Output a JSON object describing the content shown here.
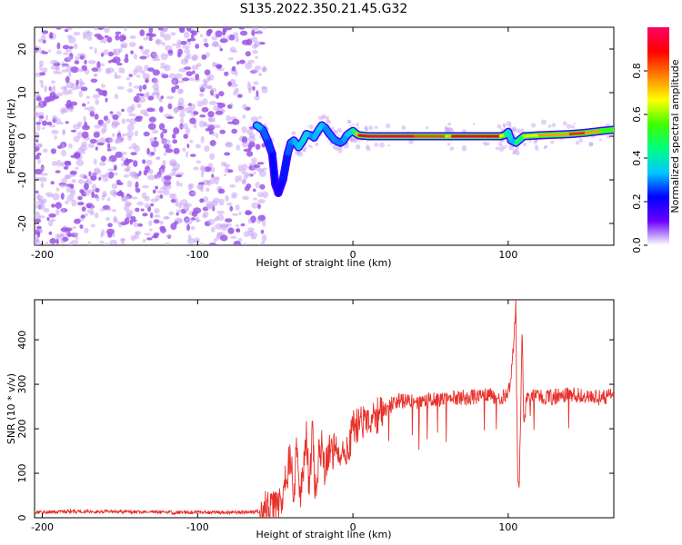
{
  "title": "S135.2022.350.21.45.G32",
  "colors": {
    "snr_line": "#e8302a",
    "background": "#ffffff",
    "noise_dots": "#9b55e6",
    "noise_dots_light": "#c9a4f4",
    "colorbar_stops": [
      "#ffffff",
      "#6a00ff",
      "#0000ff",
      "#00c8ff",
      "#00ff80",
      "#40ff00",
      "#ffff00",
      "#ff8000",
      "#ff0000",
      "#ff0066"
    ]
  },
  "chart_data": [
    {
      "type": "heatmap",
      "title": "S135.2022.350.21.45.G32",
      "xlabel": "Height of straight line (km)",
      "ylabel": "Frequency (Hz)",
      "xlim": [
        -205,
        168
      ],
      "ylim": [
        -25,
        25
      ],
      "xticks": [
        -200,
        -100,
        0,
        100
      ],
      "yticks": [
        -20,
        -10,
        0,
        10,
        20
      ],
      "colorbar": {
        "label": "Normalized spectral amplitude",
        "range": [
          0.0,
          1.0
        ],
        "ticks": [
          "0.0",
          "0.2",
          "0.4",
          "0.6",
          "0.8"
        ]
      },
      "noise_region": {
        "x_from": -205,
        "x_to": -60,
        "freq_from": -25,
        "freq_to": 25,
        "amplitude": 0.15
      },
      "ridge": {
        "x": [
          -62,
          -58,
          -55,
          -52,
          -50,
          -48,
          -45,
          -42,
          -40,
          -38,
          -35,
          -32,
          -30,
          -27,
          -25,
          -22,
          -20,
          -18,
          -15,
          -12,
          -10,
          -8,
          -6,
          -4,
          -2,
          0,
          2,
          4,
          10,
          20,
          40,
          60,
          62,
          64,
          80,
          95,
          98,
          100,
          102,
          105,
          110,
          120,
          140,
          150,
          160,
          168
        ],
        "freq": [
          2.5,
          1.5,
          -1.0,
          -4.0,
          -11.0,
          -13.0,
          -10.0,
          -4.0,
          -1.5,
          -1.0,
          -2.5,
          -1.0,
          0.5,
          0.2,
          -0.3,
          1.5,
          2.5,
          2.0,
          0.5,
          -0.8,
          -1.2,
          -1.5,
          -1.0,
          0.2,
          0.8,
          1.2,
          0.6,
          0.2,
          0.0,
          0.0,
          0.0,
          0.0,
          0.0,
          0.0,
          0.0,
          0.0,
          0.3,
          1.0,
          -1.0,
          -1.5,
          0.0,
          0.2,
          0.5,
          0.8,
          1.2,
          1.5
        ],
        "amplitude": [
          0.35,
          0.3,
          0.25,
          0.25,
          0.2,
          0.18,
          0.22,
          0.25,
          0.3,
          0.3,
          0.35,
          0.35,
          0.38,
          0.3,
          0.3,
          0.35,
          0.35,
          0.3,
          0.3,
          0.3,
          0.3,
          0.28,
          0.3,
          0.32,
          0.35,
          0.35,
          0.55,
          0.9,
          0.95,
          0.95,
          0.95,
          0.7,
          0.55,
          0.9,
          0.95,
          0.85,
          0.5,
          0.4,
          0.35,
          0.3,
          0.6,
          0.7,
          0.8,
          0.9,
          0.6,
          0.5
        ]
      }
    },
    {
      "type": "line",
      "title": "",
      "xlabel": "Height of straight line (km)",
      "ylabel": "SNR (10 * v/v)",
      "xlim": [
        -205,
        168
      ],
      "ylim": [
        0,
        490
      ],
      "xticks": [
        -200,
        -100,
        0,
        100
      ],
      "yticks": [
        0,
        100,
        200,
        300,
        400
      ],
      "grid": false,
      "series": [
        {
          "x": [
            -205,
            -180,
            -160,
            -140,
            -120,
            -100,
            -80,
            -65,
            -55,
            -50,
            -45,
            -40,
            -38,
            -36,
            -34,
            -32,
            -30,
            -28,
            -26,
            -24,
            -22,
            -20,
            -18,
            -15,
            -12,
            -10,
            -8,
            -5,
            -2,
            0,
            5,
            10,
            15,
            20,
            25,
            30,
            40,
            50,
            60,
            70,
            80,
            90,
            95,
            100,
            102,
            104,
            105,
            106,
            107,
            108,
            109,
            110,
            112,
            115,
            120,
            130,
            140,
            150,
            160,
            168
          ],
          "y": [
            12,
            14,
            14,
            13,
            12,
            12,
            12,
            13,
            16,
            25,
            60,
            140,
            60,
            170,
            40,
            100,
            180,
            60,
            190,
            50,
            130,
            170,
            100,
            160,
            150,
            170,
            145,
            160,
            175,
            200,
            210,
            225,
            230,
            240,
            255,
            265,
            262,
            265,
            268,
            270,
            272,
            275,
            270,
            280,
            320,
            420,
            490,
            120,
            65,
            230,
            430,
            200,
            280,
            275,
            270,
            272,
            278,
            272,
            270,
            276
          ]
        }
      ]
    }
  ]
}
